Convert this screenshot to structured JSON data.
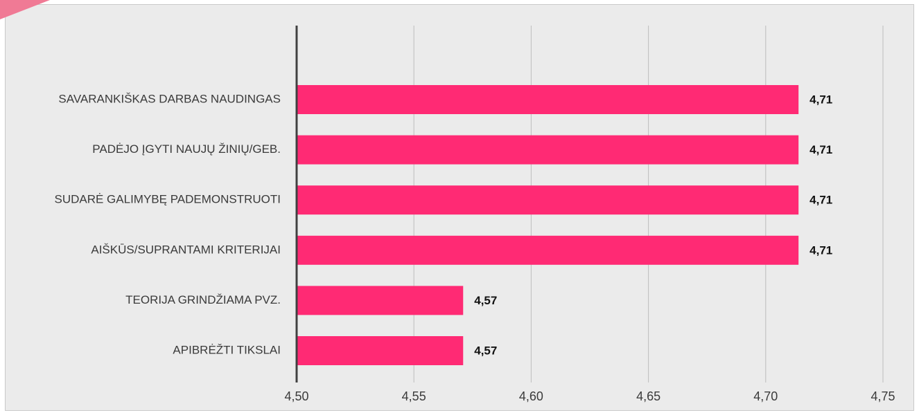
{
  "chart_data": {
    "type": "bar",
    "orientation": "horizontal",
    "categories": [
      "SAVARANKIŠKAS DARBAS NAUDINGAS",
      "PADĖJO ĮGYTI NAUJŲ ŽINIŲ/GEB.",
      "SUDARĖ GALIMYBĘ PADEMONSTRUOTI",
      "AIŠKŪS/SUPRANTAMI KRITERIJAI",
      "TEORIJA GRINDŽIAMA PVZ.",
      "APIBRĖŽTI TIKSLAI"
    ],
    "values": [
      4.714,
      4.714,
      4.714,
      4.714,
      4.571,
      4.571
    ],
    "data_labels": [
      "4,71",
      "4,71",
      "4,71",
      "4,71",
      "4,57",
      "4,57"
    ],
    "xlim": [
      4.5,
      4.75
    ],
    "xticks": [
      4.5,
      4.55,
      4.6,
      4.65,
      4.7,
      4.75
    ],
    "xtick_labels": [
      "4,50",
      "4,55",
      "4,60",
      "4,65",
      "4,70",
      "4,75"
    ],
    "grid": true,
    "colors": {
      "bar": "#ff2a74",
      "background": "#ebebeb",
      "gridline": "#bdbdbd",
      "axis": "#404040"
    }
  }
}
